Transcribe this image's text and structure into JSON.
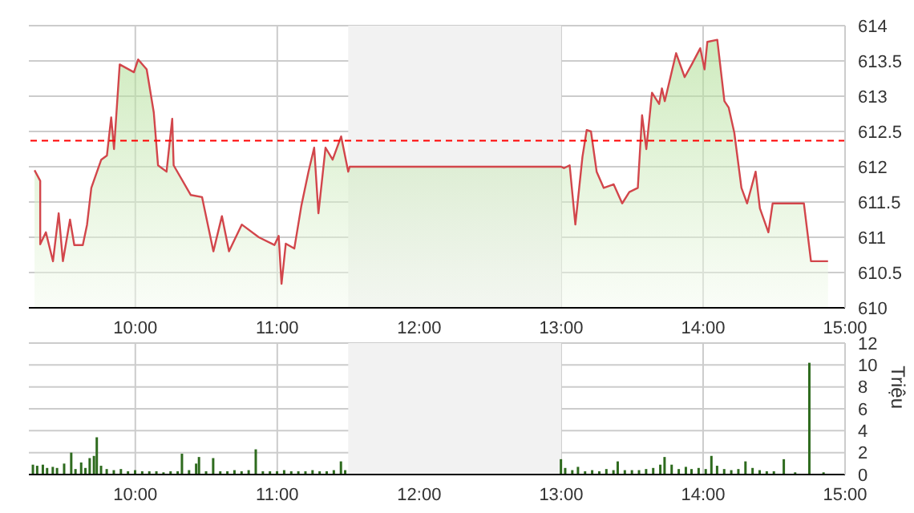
{
  "chart_data": [
    {
      "type": "area",
      "xlim": [
        9.25,
        15
      ],
      "xticks": [
        {
          "value": 10,
          "label": "10:00"
        },
        {
          "value": 11,
          "label": "11:00"
        },
        {
          "value": 12,
          "label": "12:00"
        },
        {
          "value": 13,
          "label": "13:00"
        },
        {
          "value": 14,
          "label": "14:00"
        },
        {
          "value": 15,
          "label": "15:00"
        }
      ],
      "ylim": [
        610,
        614
      ],
      "yticks": [
        610,
        610.5,
        611,
        611.5,
        612,
        612.5,
        613,
        613.5,
        614
      ],
      "grid": true,
      "line_style": "solid",
      "marker": "none",
      "ref_lines": [
        {
          "axis": "y",
          "value": 612.37,
          "color": "#ff0000",
          "line_style": "dashed"
        }
      ],
      "bands": [
        {
          "axis": "x",
          "from": 11.5,
          "to": 13,
          "color": "#f2f2f2"
        }
      ],
      "series": [
        {
          "color": "#d2464b",
          "x": [
            9.29,
            9.33,
            9.33,
            9.37,
            9.42,
            9.46,
            9.49,
            9.54,
            9.57,
            9.63,
            9.66,
            9.69,
            9.76,
            9.8,
            9.83,
            9.85,
            9.89,
            9.99,
            10.02,
            10.08,
            10.13,
            10.16,
            10.22,
            10.26,
            10.27,
            10.39,
            10.47,
            10.55,
            10.61,
            10.66,
            10.75,
            10.87,
            10.98,
            11.01,
            11.03,
            11.06,
            11.12,
            11.17,
            11.22,
            11.26,
            11.29,
            11.34,
            11.39,
            11.45,
            11.5,
            11.51,
            13.0,
            13.02,
            13.06,
            13.1,
            13.15,
            13.18,
            13.21,
            13.25,
            13.3,
            13.37,
            13.43,
            13.48,
            13.54,
            13.57,
            13.6,
            13.64,
            13.69,
            13.71,
            13.73,
            13.81,
            13.87,
            13.92,
            13.98,
            14.01,
            14.03,
            14.1,
            14.15,
            14.18,
            14.22,
            14.27,
            14.31,
            14.37,
            14.4,
            14.46,
            14.49,
            14.71,
            14.76,
            14.88
          ],
          "values": [
            611.95,
            611.8,
            610.9,
            611.07,
            610.66,
            611.34,
            610.66,
            611.25,
            610.89,
            610.89,
            611.18,
            611.7,
            612.1,
            612.16,
            612.7,
            612.25,
            613.45,
            613.34,
            613.52,
            613.38,
            612.77,
            612.02,
            611.93,
            612.68,
            612.02,
            611.6,
            611.57,
            610.8,
            611.3,
            610.8,
            611.18,
            611,
            610.89,
            611.02,
            610.34,
            610.91,
            610.84,
            611.45,
            611.93,
            612.27,
            611.34,
            612.27,
            612.1,
            612.43,
            611.93,
            612,
            612,
            611.98,
            612.02,
            611.18,
            612.14,
            612.52,
            612.5,
            611.93,
            611.7,
            611.75,
            611.48,
            611.64,
            611.7,
            612.73,
            612.25,
            613.05,
            612.89,
            613.11,
            612.93,
            613.61,
            613.27,
            613.45,
            613.68,
            613.38,
            613.77,
            613.8,
            612.93,
            612.84,
            612.48,
            611.7,
            611.48,
            611.93,
            611.41,
            611.07,
            611.48,
            611.48,
            610.66,
            610.66
          ]
        }
      ]
    },
    {
      "type": "bar",
      "y2label": "Triệu",
      "xlim": [
        9.25,
        15
      ],
      "xticks": [
        {
          "value": 10,
          "label": "10:00"
        },
        {
          "value": 11,
          "label": "11:00"
        },
        {
          "value": 12,
          "label": "12:00"
        },
        {
          "value": 13,
          "label": "13:00"
        },
        {
          "value": 14,
          "label": "14:00"
        },
        {
          "value": 15,
          "label": "15:00"
        }
      ],
      "ylim": [
        0,
        12
      ],
      "yticks": [
        0,
        2,
        4,
        6,
        8,
        10,
        12
      ],
      "grid": true,
      "bands": [
        {
          "axis": "x",
          "from": 11.5,
          "to": 13,
          "color": "#f2f2f2"
        }
      ],
      "series": [
        {
          "color": "#2e6b1e",
          "x": [
            9.28,
            9.31,
            9.35,
            9.38,
            9.42,
            9.45,
            9.5,
            9.55,
            9.58,
            9.62,
            9.65,
            9.68,
            9.71,
            9.73,
            9.76,
            9.8,
            9.85,
            9.9,
            9.95,
            10.0,
            10.05,
            10.1,
            10.15,
            10.2,
            10.25,
            10.3,
            10.33,
            10.38,
            10.43,
            10.45,
            10.5,
            10.55,
            10.6,
            10.65,
            10.7,
            10.75,
            10.8,
            10.85,
            10.9,
            10.95,
            11.0,
            11.05,
            11.1,
            11.15,
            11.2,
            11.25,
            11.3,
            11.35,
            11.4,
            11.45,
            11.48,
            13.0,
            13.03,
            13.08,
            13.12,
            13.17,
            13.22,
            13.27,
            13.32,
            13.37,
            13.4,
            13.45,
            13.5,
            13.55,
            13.6,
            13.65,
            13.7,
            13.73,
            13.78,
            13.83,
            13.88,
            13.92,
            13.97,
            14.02,
            14.06,
            14.1,
            14.15,
            14.2,
            14.25,
            14.3,
            14.35,
            14.4,
            14.45,
            14.5,
            14.57,
            14.65,
            14.75,
            14.85
          ],
          "values": [
            0.9,
            0.8,
            0.9,
            0.6,
            0.7,
            0.6,
            1.0,
            2.0,
            0.5,
            1.1,
            0.6,
            1.5,
            1.7,
            3.4,
            0.8,
            0.5,
            0.4,
            0.5,
            0.3,
            0.4,
            0.3,
            0.3,
            0.3,
            0.2,
            0.3,
            0.3,
            1.9,
            0.4,
            1.0,
            1.6,
            0.3,
            1.5,
            0.3,
            0.3,
            0.4,
            0.3,
            0.4,
            2.3,
            0.3,
            0.3,
            0.3,
            0.4,
            0.3,
            0.3,
            0.3,
            0.4,
            0.3,
            0.3,
            0.4,
            1.2,
            0.4,
            1.4,
            0.6,
            0.4,
            0.7,
            0.3,
            0.4,
            0.3,
            0.5,
            0.4,
            1.2,
            0.4,
            0.4,
            0.4,
            0.5,
            0.6,
            0.9,
            1.6,
            0.9,
            0.5,
            0.7,
            0.5,
            0.6,
            0.5,
            1.7,
            0.8,
            0.5,
            0.4,
            0.5,
            1.2,
            0.6,
            0.4,
            0.3,
            0.3,
            1.4,
            0.2,
            10.2,
            0.2
          ]
        }
      ]
    }
  ]
}
